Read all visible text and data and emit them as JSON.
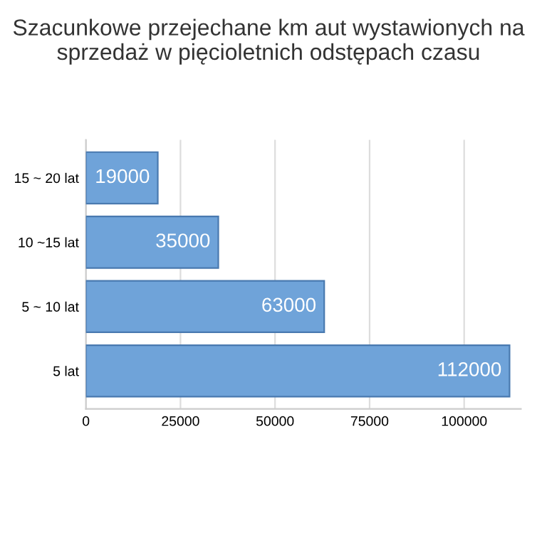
{
  "chart_data": {
    "type": "bar",
    "orientation": "horizontal",
    "title": "Szacunkowe przejechane km aut wystawionych na sprzedaż w pięcioletnich odstępach czasu",
    "categories": [
      "15 ~ 20 lat",
      "10 ~15 lat",
      "5 ~ 10 lat",
      "5 lat"
    ],
    "values": [
      19000,
      35000,
      63000,
      112000
    ],
    "color": "#6fa3d9",
    "xlim": [
      0,
      115000
    ],
    "xticks": [
      0,
      25000,
      50000,
      75000,
      100000
    ],
    "grid": "x",
    "data_labels": true
  }
}
